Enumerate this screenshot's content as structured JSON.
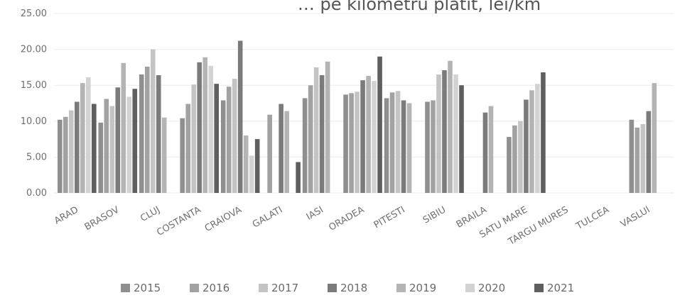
{
  "chart_data": {
    "type": "bar",
    "title": "… pe kilometru plătit, lei/km",
    "xlabel": "",
    "ylabel": "",
    "ylim": [
      0,
      25
    ],
    "yticks": [
      "0.00",
      "5.00",
      "10.00",
      "15.00",
      "20.00",
      "25.00"
    ],
    "categories": [
      "ARAD",
      "BRASOV",
      "CLUJ",
      "COSTANTA",
      "CRAIOVA",
      "GALATI",
      "IASI",
      "ORADEA",
      "PITESTI",
      "SIBIU",
      "BRAILA",
      "SATU MARE",
      "TARGU MURES",
      "TULCEA",
      "VASLUI"
    ],
    "series": [
      {
        "name": "2015",
        "color": "#8f8f8f",
        "values": [
          10.2,
          9.8,
          16.5,
          10.4,
          12.9,
          null,
          13.2,
          13.7,
          13.2,
          12.7,
          null,
          7.8,
          null,
          null,
          10.2
        ]
      },
      {
        "name": "2016",
        "color": "#a2a2a2",
        "values": [
          10.6,
          13.1,
          17.6,
          12.4,
          14.8,
          10.9,
          15.0,
          13.9,
          14.0,
          12.9,
          null,
          9.4,
          null,
          null,
          9.1
        ]
      },
      {
        "name": "2017",
        "color": "#c4c4c4",
        "values": [
          11.5,
          12.1,
          20.0,
          15.1,
          15.9,
          null,
          17.5,
          14.1,
          14.2,
          16.5,
          null,
          10.0,
          null,
          null,
          9.6
        ]
      },
      {
        "name": "2018",
        "color": "#7b7b7b",
        "values": [
          12.7,
          14.7,
          16.4,
          18.2,
          21.2,
          12.4,
          16.4,
          15.7,
          12.9,
          17.1,
          11.2,
          13.0,
          null,
          null,
          11.4
        ]
      },
      {
        "name": "2019",
        "color": "#b4b4b4",
        "values": [
          15.3,
          18.1,
          10.5,
          18.9,
          8.0,
          11.4,
          18.3,
          16.3,
          12.5,
          18.4,
          12.1,
          14.3,
          null,
          null,
          15.3
        ]
      },
      {
        "name": "2020",
        "color": "#d3d3d3",
        "values": [
          16.1,
          13.4,
          null,
          17.7,
          5.2,
          null,
          null,
          15.6,
          null,
          16.5,
          null,
          15.2,
          null,
          null,
          null
        ]
      },
      {
        "name": "2021",
        "color": "#5f5f5f",
        "values": [
          12.4,
          14.5,
          null,
          15.2,
          7.5,
          4.3,
          null,
          19.0,
          null,
          15.0,
          null,
          16.8,
          null,
          null,
          null
        ]
      }
    ],
    "grid": true,
    "legend": "bottom",
    "colors": {
      "title": "#555555",
      "axis_text": "#6f6f6f",
      "grid": "#ececec"
    }
  }
}
